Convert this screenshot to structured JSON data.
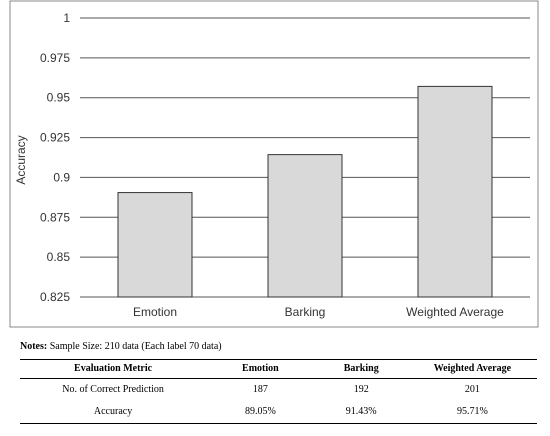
{
  "chart_data": {
    "type": "bar",
    "categories": [
      "Emotion",
      "Barking",
      "Weighted Average"
    ],
    "values": [
      0.8905,
      0.9143,
      0.9571
    ],
    "title": "",
    "xlabel": "",
    "ylabel": "Accuracy",
    "ylim": [
      0.825,
      1
    ],
    "yticks": [
      "0.825",
      "0.85",
      "0.875",
      "0.9",
      "0.925",
      "0.95",
      "0.975",
      "1"
    ],
    "grid": true,
    "bar_color": "#d9d9d9",
    "bar_stroke": "#333333",
    "grid_color": "#555555"
  },
  "notes": {
    "label": "Notes:",
    "text": " Sample Size: 210 data (Each label 70 data)"
  },
  "table": {
    "headers": [
      "Evaluation Metric",
      "Emotion",
      "Barking",
      "Weighted Average"
    ],
    "rows": [
      [
        "No. of Correct Prediction",
        "187",
        "192",
        "201"
      ],
      [
        "Accuracy",
        "89.05%",
        "91.43%",
        "95.71%"
      ]
    ]
  }
}
